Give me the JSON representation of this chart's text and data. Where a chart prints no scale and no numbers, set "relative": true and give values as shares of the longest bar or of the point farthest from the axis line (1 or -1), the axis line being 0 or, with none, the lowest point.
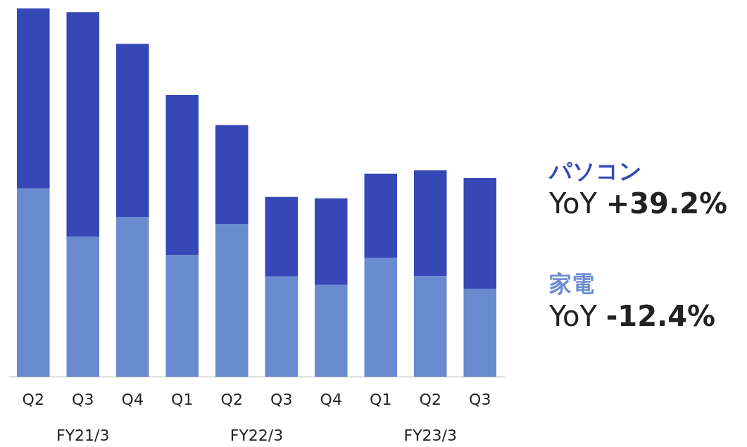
{
  "chart_data": {
    "type": "bar",
    "stacked": true,
    "relative": true,
    "legend": false,
    "categories": [
      "Q2",
      "Q3",
      "Q4",
      "Q1",
      "Q2",
      "Q3",
      "Q4",
      "Q1",
      "Q2",
      "Q3"
    ],
    "series": [
      {
        "name": "家電",
        "color": "#6a8bd0",
        "values": [
          0.511,
          0.38,
          0.434,
          0.331,
          0.415,
          0.272,
          0.249,
          0.323,
          0.273,
          0.239
        ]
      },
      {
        "name": "パソコン",
        "color": "#3548b5",
        "values": [
          0.489,
          0.61,
          0.47,
          0.434,
          0.268,
          0.216,
          0.235,
          0.228,
          0.287,
          0.3
        ]
      }
    ],
    "annotations": [
      "YoY +39.2%",
      "YoY -12.4%",
      "FY21/3",
      "FY22/3",
      "FY23/3"
    ]
  }
}
